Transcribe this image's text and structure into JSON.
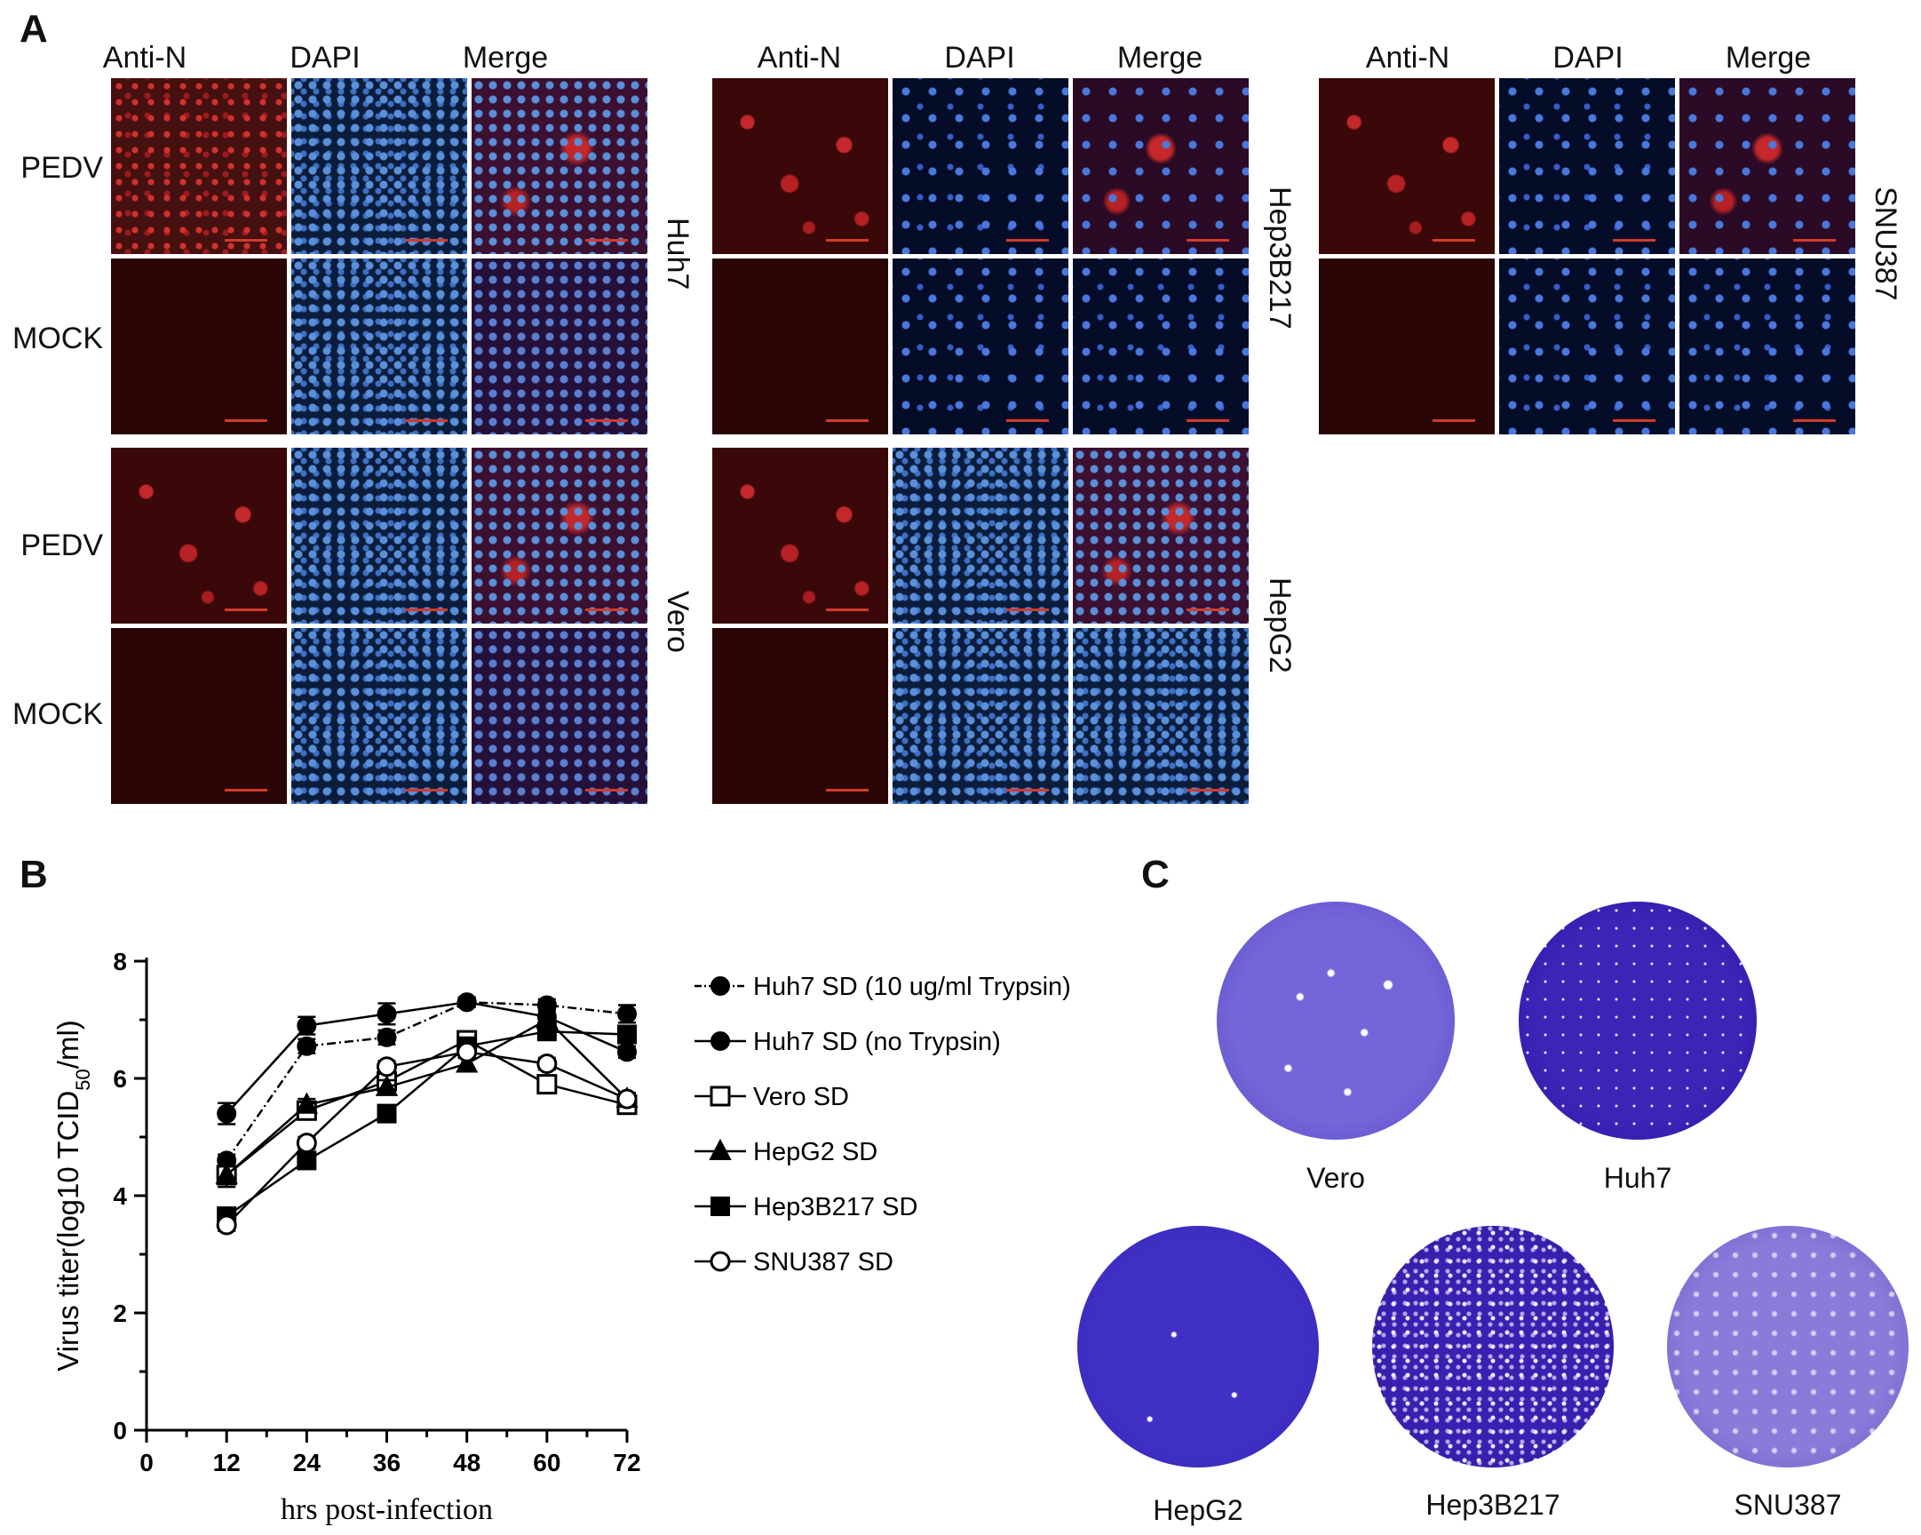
{
  "panel_a": {
    "letter": "A",
    "column_labels": [
      "Anti-N",
      "DAPI",
      "Merge"
    ],
    "row_labels": {
      "infected": "PEDV",
      "mock": "MOCK"
    },
    "cell_lines": [
      "Huh7",
      "Hep3B217",
      "SNU387",
      "Vero",
      "HepG2"
    ]
  },
  "panel_b": {
    "letter": "B"
  },
  "panel_c": {
    "letter": "C",
    "dish_labels": [
      "Vero",
      "Huh7",
      "HepG2",
      "Hep3B217",
      "SNU387"
    ]
  },
  "chart_data": {
    "type": "line",
    "title": "",
    "xlabel": "hrs post-infection",
    "ylabel": "Virus titer(log10 TCID50/ml)",
    "ylabel_parts": {
      "main": "Virus titer(log10 TCID",
      "sub": "50",
      "tail": "/ml)"
    },
    "xlim": [
      0,
      72
    ],
    "ylim": [
      0,
      8
    ],
    "xticks": [
      0,
      12,
      24,
      36,
      48,
      60,
      72
    ],
    "yticks": [
      0,
      2,
      4,
      6,
      8
    ],
    "x": [
      12,
      24,
      36,
      48,
      60,
      72
    ],
    "legend_position": "right",
    "series": [
      {
        "name": "Huh7 SD (10 ug/ml Trypsin)",
        "marker": "filled-circle",
        "line": "dashdot",
        "values": [
          4.6,
          6.55,
          6.7,
          7.3,
          7.25,
          7.1
        ],
        "error": [
          0.1,
          0.12,
          0.12,
          0.08,
          0.1,
          0.15
        ]
      },
      {
        "name": "Huh7 SD (no Trypsin)",
        "marker": "filled-circle",
        "line": "solid",
        "values": [
          5.4,
          6.9,
          7.1,
          7.3,
          7.05,
          6.45
        ],
        "error": [
          0.18,
          0.15,
          0.18,
          0.08,
          0.12,
          0.1
        ]
      },
      {
        "name": "Vero SD",
        "marker": "open-square",
        "line": "solid",
        "values": [
          4.35,
          5.45,
          5.95,
          6.65,
          5.9,
          5.55
        ],
        "error": [
          0.2,
          0.12,
          0.12,
          0.1,
          0.1,
          0.1
        ]
      },
      {
        "name": "HepG2 SD",
        "marker": "filled-triangle",
        "line": "solid",
        "values": [
          4.35,
          5.55,
          5.85,
          6.25,
          7.0,
          5.65
        ],
        "error": [
          0.15,
          0.1,
          0.12,
          0.1,
          0.1,
          0.1
        ]
      },
      {
        "name": "Hep3B217 SD",
        "marker": "filled-square",
        "line": "solid",
        "values": [
          3.65,
          4.6,
          5.4,
          6.55,
          6.8,
          6.75
        ],
        "error": [
          0.1,
          0.1,
          0.1,
          0.1,
          0.1,
          0.1
        ]
      },
      {
        "name": "SNU387 SD",
        "marker": "open-circle",
        "line": "solid",
        "values": [
          3.5,
          4.9,
          6.2,
          6.45,
          6.25,
          5.65
        ],
        "error": [
          0.1,
          0.1,
          0.1,
          0.1,
          0.1,
          0.1
        ]
      }
    ]
  }
}
